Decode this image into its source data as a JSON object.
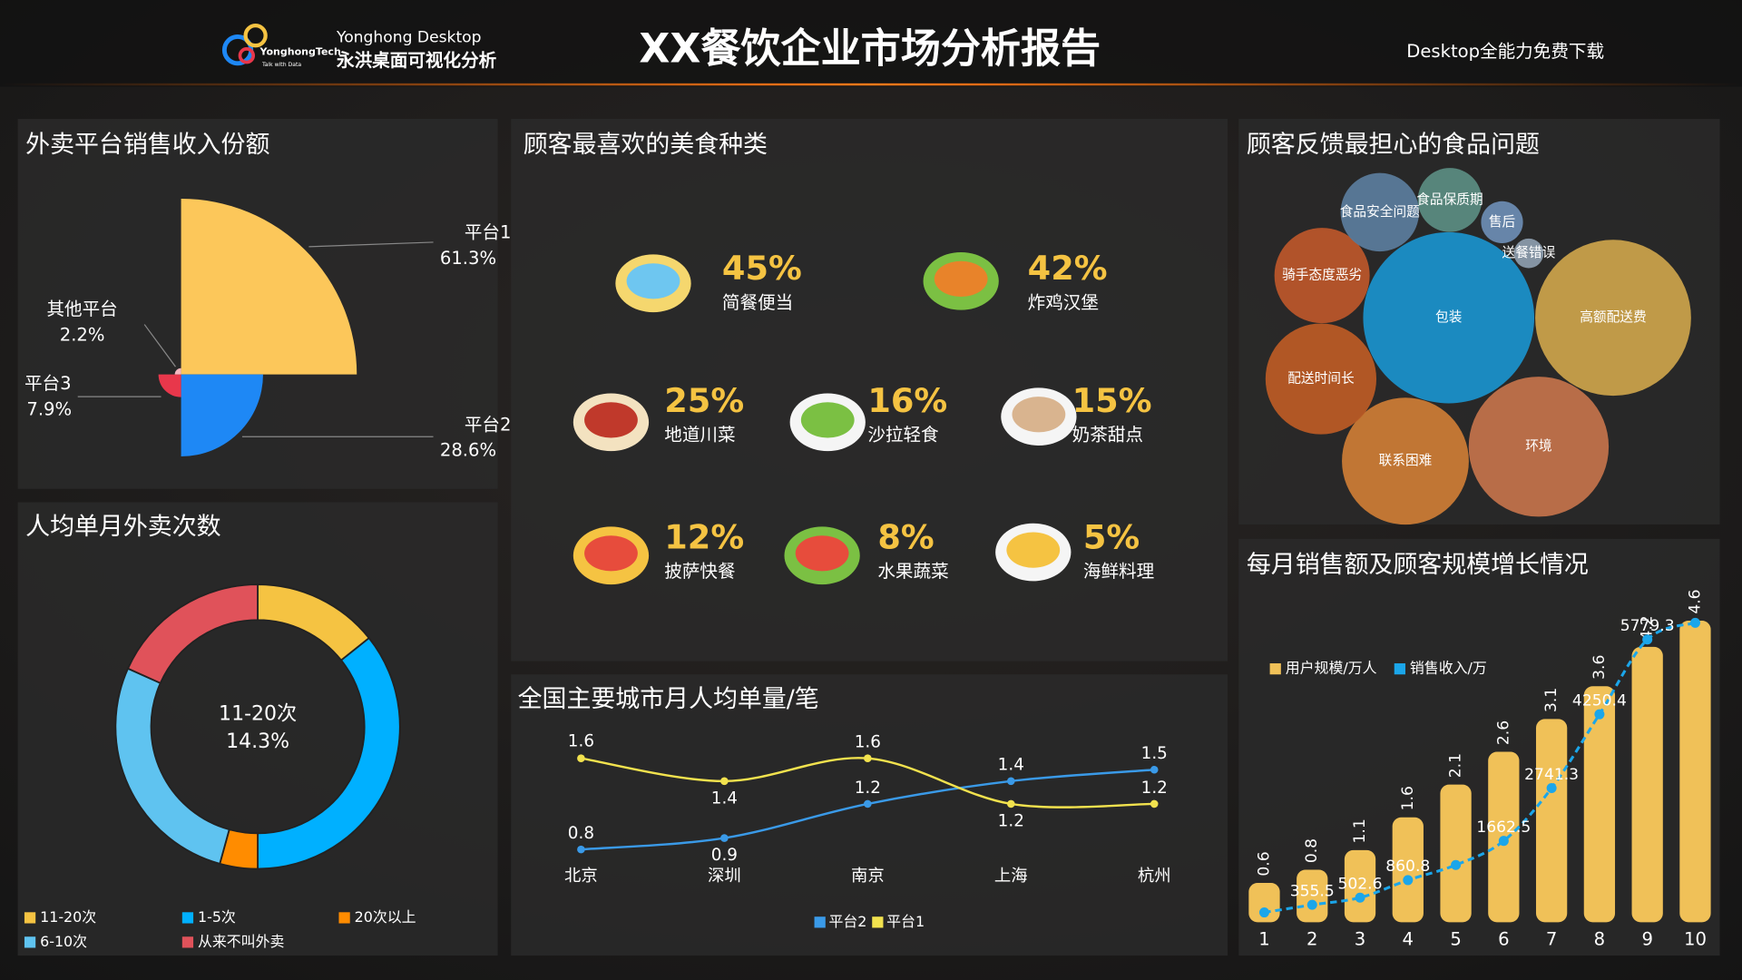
{
  "header": {
    "logo_brand": "YonghongTech",
    "logo_slogan": "Talk with Data",
    "product": "Yonghong Desktop",
    "product_cn": "永洪桌面可视化分析",
    "title": "XX餐饮企业市场分析报告",
    "link": "Desktop全能力免费下载"
  },
  "chart_data": [
    {
      "type": "rose",
      "title": "外卖平台销售收入份额",
      "categories": [
        "平台1",
        "平台2",
        "平台3",
        "其他平台"
      ],
      "values": [
        61.3,
        28.6,
        7.9,
        2.2
      ],
      "value_labels": [
        "61.3%",
        "28.6%",
        "7.9%",
        "2.2%"
      ],
      "colors": [
        "#fcc75a",
        "#1e88f5",
        "#e8374b",
        "#f5b7c0"
      ]
    },
    {
      "type": "donut",
      "title": "人均单月外卖次数",
      "categories": [
        "11-20次",
        "1-5次",
        "20次以上",
        "6-10次",
        "从来不叫外卖"
      ],
      "values": [
        14.3,
        35.7,
        4.3,
        27.4,
        18.3
      ],
      "value_labels": [
        "14.3%",
        null,
        null,
        null,
        null
      ],
      "colors": [
        "#f5c342",
        "#00b0ff",
        "#ff8c00",
        "#5fc3f0",
        "#e0525a"
      ]
    },
    {
      "type": "pictograph",
      "title": "顾客最喜欢的美食种类",
      "categories": [
        "简餐便当",
        "炸鸡汉堡",
        "地道川菜",
        "沙拉轻食",
        "奶茶甜点",
        "披萨快餐",
        "水果蔬菜",
        "海鲜料理"
      ],
      "values": [
        45,
        42,
        25,
        16,
        15,
        12,
        8,
        5
      ],
      "value_labels": [
        "45%",
        "42%",
        "25%",
        "16%",
        "15%",
        "12%",
        "8%",
        "5%"
      ],
      "color": "#f5c342"
    },
    {
      "type": "bubble",
      "title": "顾客反馈最担心的食品问题",
      "categories": [
        "包装",
        "高额配送费",
        "环境",
        "联系困难",
        "配送时间长",
        "骑手态度恶劣",
        "食品安全问题",
        "食品保质期",
        "售后",
        "送餐错误"
      ],
      "values": [
        100,
        83,
        67,
        55,
        42,
        31,
        21,
        14,
        6,
        3
      ],
      "colors": [
        "#1a8fc8",
        "#c8a04a",
        "#c0714a",
        "#c97a35",
        "#b85a25",
        "#b8552a",
        "#5a7a9a",
        "#5a8a80",
        "#6a8ab0",
        "#8a9aaa"
      ]
    },
    {
      "type": "line",
      "title": "全国主要城市月人均单量/笔",
      "categories": [
        "北京",
        "深圳",
        "南京",
        "上海",
        "杭州"
      ],
      "series": [
        {
          "name": "平台2",
          "color": "#3a9ae8",
          "values": [
            0.8,
            0.9,
            1.2,
            1.4,
            1.5
          ]
        },
        {
          "name": "平台1",
          "color": "#f2e24e",
          "values": [
            1.6,
            1.4,
            1.6,
            1.2,
            1.2
          ]
        }
      ],
      "ylim": [
        0.6,
        1.8
      ]
    },
    {
      "type": "bar_line",
      "title": "每月销售额及顾客规模增长情况",
      "categories": [
        "1",
        "2",
        "3",
        "4",
        "5",
        "6",
        "7",
        "8",
        "9",
        "10"
      ],
      "series": [
        {
          "name": "用户规模/万人",
          "type": "bar",
          "color": "#f0c158",
          "values": [
            0.6,
            0.8,
            1.1,
            1.6,
            2.1,
            2.6,
            3.1,
            3.6,
            4.2,
            4.6
          ]
        },
        {
          "name": "销售收入/万",
          "type": "line",
          "axis": "y2",
          "color": "#1ba6ea",
          "values": [
            200,
            355.5,
            502.6,
            860.8,
            1170,
            1662.5,
            2741.3,
            4250.4,
            5779.3,
            6120
          ],
          "value_labels": [
            null,
            "355.5",
            "502.6",
            "860.8",
            null,
            "1662.5",
            "2741.3",
            "4250.4",
            "5779.3",
            null
          ]
        }
      ],
      "ylim": [
        0,
        5
      ],
      "y2lim": [
        0,
        6700
      ]
    }
  ]
}
